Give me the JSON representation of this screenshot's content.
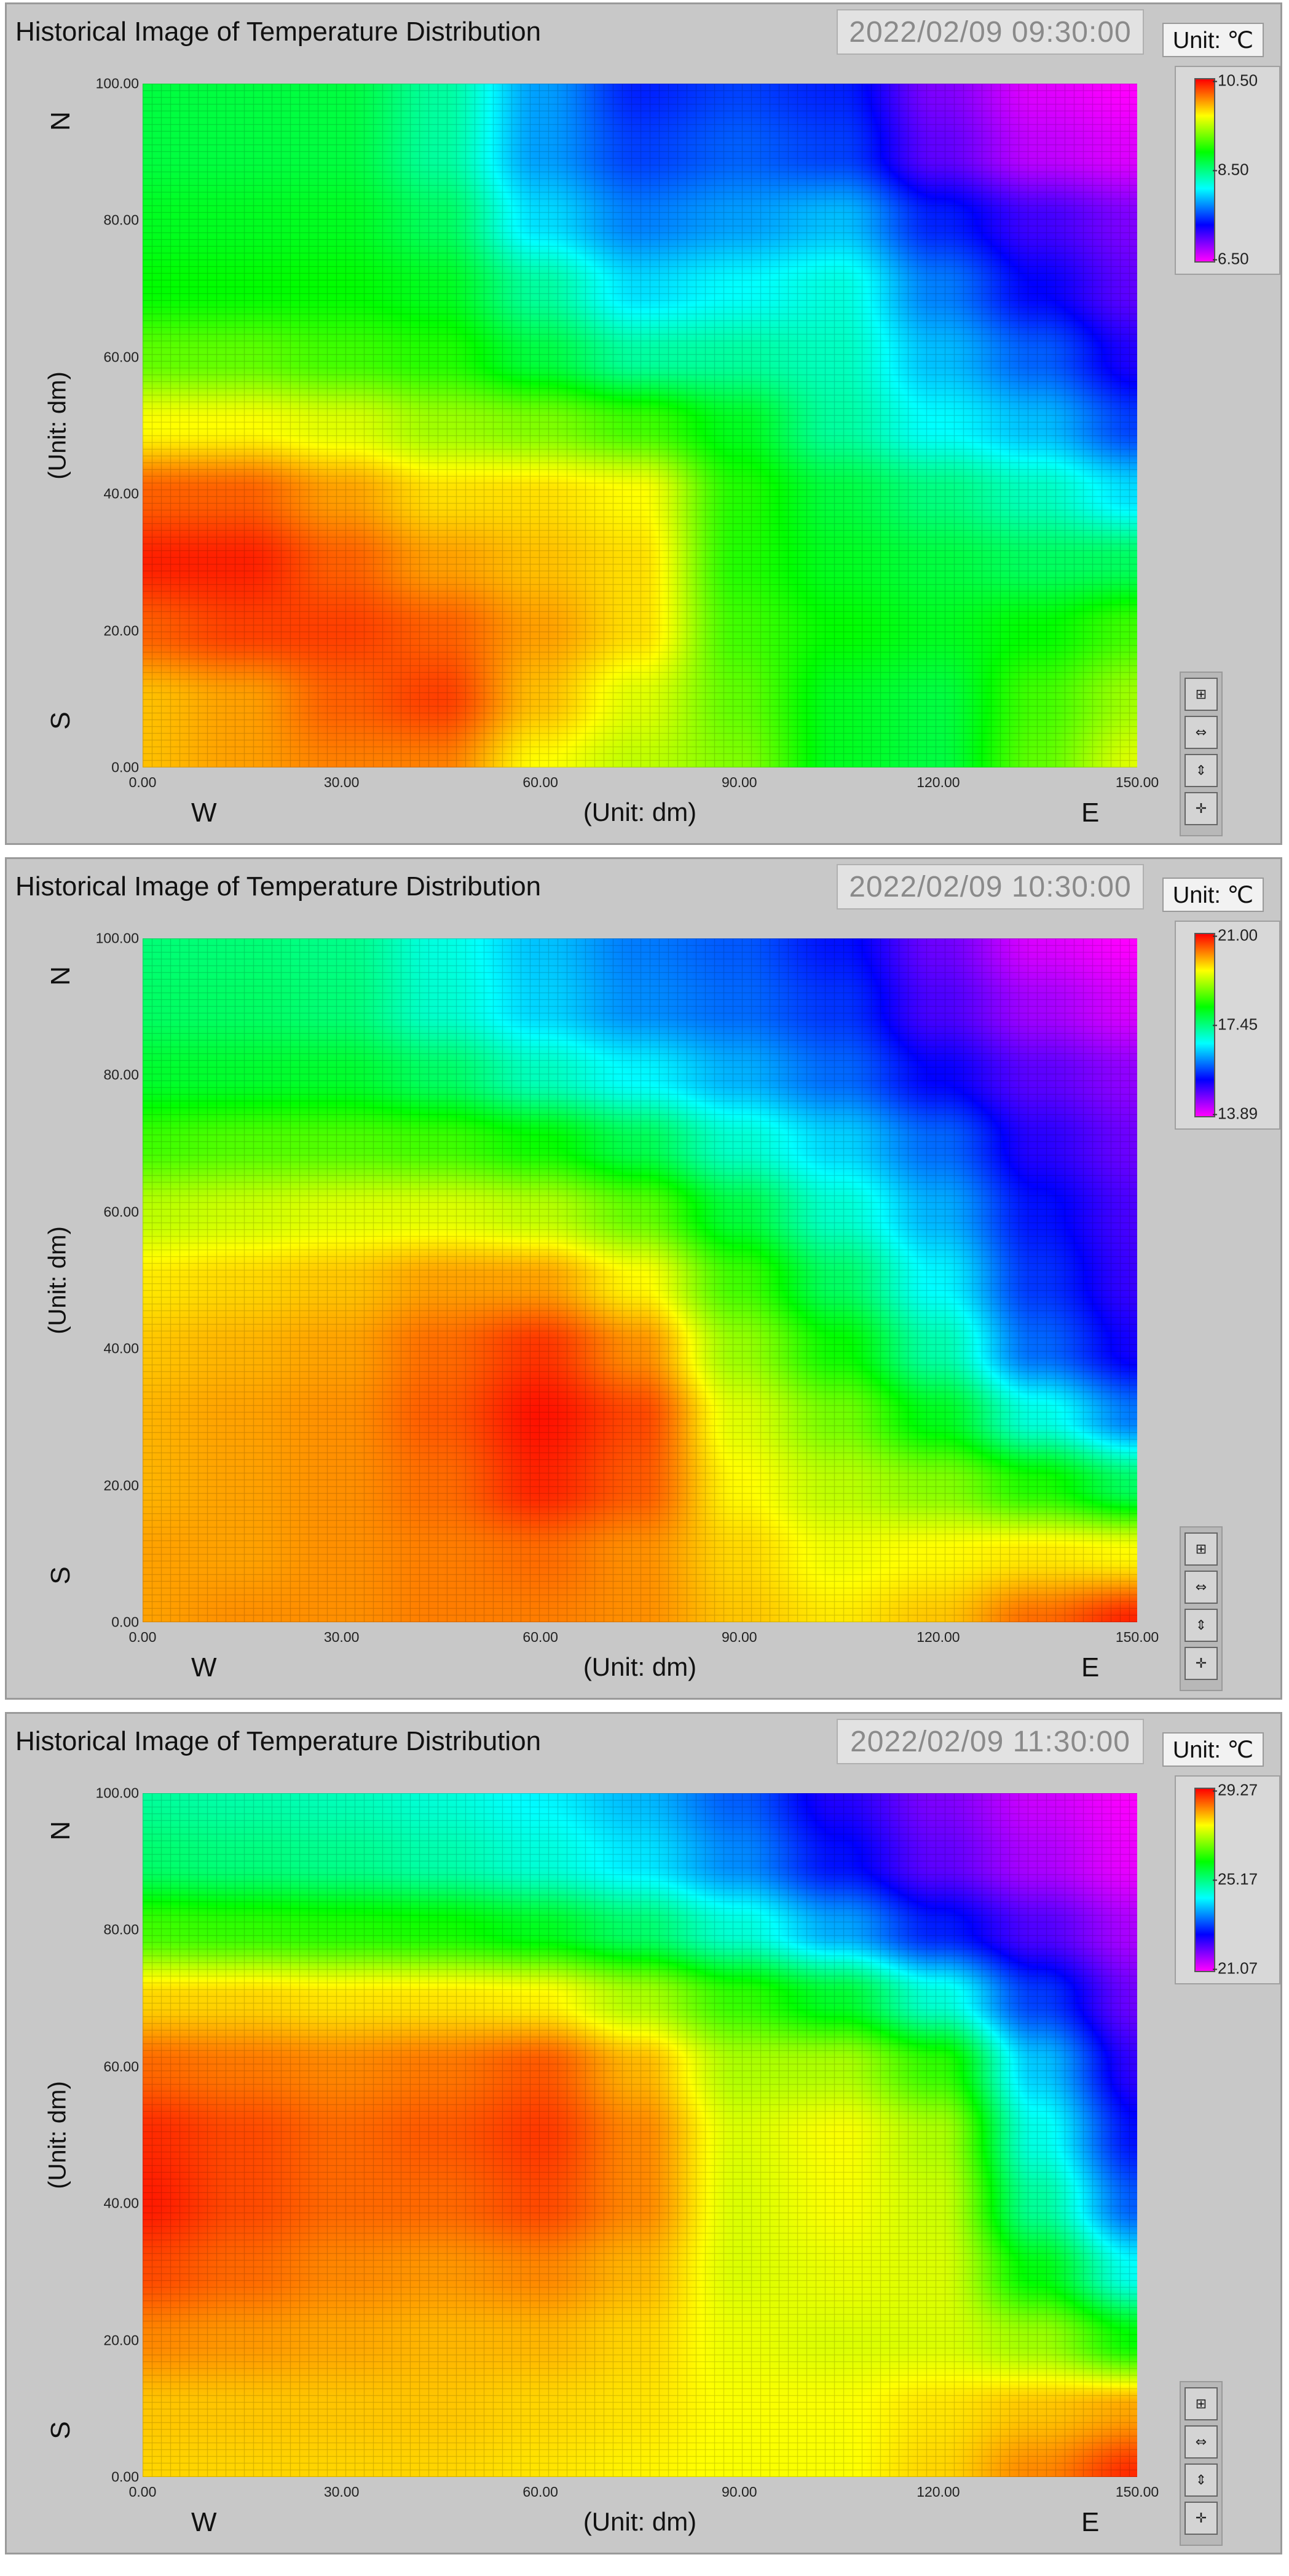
{
  "panels": [
    {
      "title": "Historical Image of Temperature Distribution",
      "timestamp": "2022/02/09 09:30:00",
      "unit": "Unit: ℃",
      "xlabel": "(Unit: dm)",
      "ylabel": "(Unit: dm)",
      "directions": {
        "north": "N",
        "south": "S",
        "west": "W",
        "east": "E"
      },
      "x_ticks": [
        "0.00",
        "30.00",
        "60.00",
        "90.00",
        "120.00",
        "150.00"
      ],
      "y_ticks": [
        "0.00",
        "20.00",
        "40.00",
        "60.00",
        "80.00",
        "100.00"
      ],
      "scale_ticks": [
        "10.50",
        "8.50",
        "6.50"
      ]
    },
    {
      "title": "Historical Image of Temperature Distribution",
      "timestamp": "2022/02/09 10:30:00",
      "unit": "Unit: ℃",
      "xlabel": "(Unit: dm)",
      "ylabel": "(Unit: dm)",
      "directions": {
        "north": "N",
        "south": "S",
        "west": "W",
        "east": "E"
      },
      "x_ticks": [
        "0.00",
        "30.00",
        "60.00",
        "90.00",
        "120.00",
        "150.00"
      ],
      "y_ticks": [
        "0.00",
        "20.00",
        "40.00",
        "60.00",
        "80.00",
        "100.00"
      ],
      "scale_ticks": [
        "21.00",
        "17.45",
        "13.89"
      ]
    },
    {
      "title": "Historical Image of Temperature Distribution",
      "timestamp": "2022/02/09 11:30:00",
      "unit": "Unit: ℃",
      "xlabel": "(Unit: dm)",
      "ylabel": "(Unit: dm)",
      "directions": {
        "north": "N",
        "south": "S",
        "west": "W",
        "east": "E"
      },
      "x_ticks": [
        "0.00",
        "30.00",
        "60.00",
        "90.00",
        "120.00",
        "150.00"
      ],
      "y_ticks": [
        "0.00",
        "20.00",
        "40.00",
        "60.00",
        "80.00",
        "100.00"
      ],
      "scale_ticks": [
        "29.27",
        "25.17",
        "21.07"
      ]
    }
  ],
  "palette_buttons": [
    "zoom-tool-icon",
    "pan-x-icon",
    "pan-y-icon",
    "cursor-cross-icon"
  ],
  "colormap": [
    "#ff00ff",
    "#0000ff",
    "#00ffff",
    "#00ff00",
    "#ffff00",
    "#ff0000"
  ],
  "chart_data": [
    {
      "type": "heatmap",
      "timestamp": "2022/02/09 09:30:00",
      "xlabel": "(Unit: dm)",
      "ylabel": "(Unit: dm)",
      "xlim": [
        0,
        150
      ],
      "ylim": [
        0,
        100
      ],
      "zlim": [
        6.5,
        10.5
      ],
      "colorbar_ticks": [
        10.5,
        8.5,
        6.5
      ],
      "unit": "℃",
      "x": [
        0,
        15,
        30,
        45,
        60,
        75,
        90,
        105,
        120,
        135,
        150
      ],
      "y": [
        0,
        10,
        20,
        30,
        40,
        50,
        60,
        70,
        80,
        90,
        100
      ],
      "z": [
        [
          9.9,
          10.0,
          10.1,
          10.1,
          9.7,
          9.5,
          9.3,
          8.8,
          8.7,
          9.2,
          9.6
        ],
        [
          9.9,
          10.0,
          10.2,
          10.3,
          9.9,
          9.6,
          9.2,
          8.8,
          8.7,
          9.1,
          9.4
        ],
        [
          10.2,
          10.3,
          10.3,
          10.2,
          10.0,
          9.8,
          9.1,
          8.9,
          8.8,
          8.9,
          9.1
        ],
        [
          10.4,
          10.4,
          10.2,
          10.0,
          9.9,
          9.8,
          9.0,
          8.8,
          8.7,
          8.6,
          8.6
        ],
        [
          10.2,
          10.2,
          10.0,
          9.8,
          9.8,
          9.7,
          9.0,
          8.7,
          8.5,
          8.3,
          8.0
        ],
        [
          9.7,
          9.7,
          9.6,
          9.4,
          9.3,
          9.1,
          8.8,
          8.4,
          8.1,
          7.9,
          7.5
        ],
        [
          9.2,
          9.2,
          9.1,
          9.0,
          8.7,
          8.4,
          8.4,
          8.3,
          7.9,
          7.6,
          7.2
        ],
        [
          8.9,
          8.9,
          8.9,
          8.8,
          8.4,
          8.0,
          8.1,
          8.2,
          7.7,
          7.3,
          7.0
        ],
        [
          8.8,
          8.8,
          8.8,
          8.6,
          8.0,
          7.7,
          7.8,
          7.9,
          7.4,
          7.1,
          6.9
        ],
        [
          8.7,
          8.7,
          8.7,
          8.4,
          7.8,
          7.5,
          7.6,
          7.5,
          7.0,
          6.7,
          6.6
        ],
        [
          8.7,
          8.7,
          8.7,
          8.4,
          7.8,
          7.4,
          7.5,
          7.4,
          6.9,
          6.6,
          6.5
        ]
      ]
    },
    {
      "type": "heatmap",
      "timestamp": "2022/02/09 10:30:00",
      "xlabel": "(Unit: dm)",
      "ylabel": "(Unit: dm)",
      "xlim": [
        0,
        150
      ],
      "ylim": [
        0,
        100
      ],
      "zlim": [
        13.89,
        21.0
      ],
      "colorbar_ticks": [
        21.0,
        17.45,
        13.89
      ],
      "unit": "℃",
      "x": [
        0,
        15,
        30,
        45,
        60,
        75,
        90,
        105,
        120,
        135,
        150
      ],
      "y": [
        0,
        10,
        20,
        30,
        40,
        50,
        60,
        70,
        80,
        90,
        100
      ],
      "z": [
        [
          20.1,
          20.2,
          20.2,
          20.3,
          20.3,
          20.2,
          19.9,
          19.7,
          19.9,
          20.4,
          20.8
        ],
        [
          20.1,
          20.1,
          20.2,
          20.3,
          20.4,
          20.2,
          19.8,
          19.5,
          19.6,
          19.7,
          19.6
        ],
        [
          20.0,
          20.1,
          20.2,
          20.4,
          20.8,
          20.5,
          19.6,
          19.2,
          18.9,
          18.3,
          17.6
        ],
        [
          20.0,
          20.1,
          20.2,
          20.5,
          20.9,
          20.6,
          19.4,
          18.8,
          18.0,
          16.9,
          16.0
        ],
        [
          19.9,
          20.0,
          20.1,
          20.4,
          20.7,
          20.2,
          19.0,
          18.2,
          17.2,
          15.9,
          15.2
        ],
        [
          19.7,
          19.8,
          19.9,
          20.1,
          20.1,
          19.6,
          18.5,
          17.6,
          16.7,
          15.6,
          15.0
        ],
        [
          19.2,
          19.3,
          19.4,
          19.4,
          19.2,
          18.7,
          17.8,
          17.0,
          16.3,
          15.4,
          14.9
        ],
        [
          18.5,
          18.6,
          18.6,
          18.5,
          18.2,
          17.7,
          17.0,
          16.5,
          15.9,
          15.1,
          14.7
        ],
        [
          17.9,
          17.9,
          17.9,
          17.6,
          17.1,
          16.7,
          16.3,
          15.9,
          15.3,
          14.8,
          14.5
        ],
        [
          17.6,
          17.6,
          17.5,
          17.0,
          16.5,
          16.1,
          15.9,
          15.6,
          14.9,
          14.4,
          14.1
        ],
        [
          17.5,
          17.5,
          17.4,
          16.9,
          16.4,
          16.0,
          15.8,
          15.4,
          14.7,
          14.1,
          13.9
        ]
      ]
    },
    {
      "type": "heatmap",
      "timestamp": "2022/02/09 11:30:00",
      "xlabel": "(Unit: dm)",
      "ylabel": "(Unit: dm)",
      "xlim": [
        0,
        150
      ],
      "ylim": [
        0,
        100
      ],
      "zlim": [
        21.07,
        29.27
      ],
      "colorbar_ticks": [
        29.27,
        25.17,
        21.07
      ],
      "unit": "℃",
      "x": [
        0,
        15,
        30,
        45,
        60,
        75,
        90,
        105,
        120,
        135,
        150
      ],
      "y": [
        0,
        10,
        20,
        30,
        40,
        50,
        60,
        70,
        80,
        90,
        100
      ],
      "z": [
        [
          27.9,
          27.9,
          27.9,
          27.9,
          27.8,
          27.7,
          27.6,
          27.6,
          27.9,
          28.4,
          29.0
        ],
        [
          28.0,
          28.0,
          28.0,
          28.0,
          27.9,
          27.8,
          27.6,
          27.6,
          27.8,
          28.0,
          28.2
        ],
        [
          28.4,
          28.3,
          28.2,
          28.1,
          28.1,
          27.9,
          27.5,
          27.4,
          27.4,
          27.0,
          26.0
        ],
        [
          28.8,
          28.6,
          28.4,
          28.3,
          28.4,
          28.1,
          27.4,
          27.5,
          27.4,
          25.9,
          24.4
        ],
        [
          29.1,
          28.8,
          28.6,
          28.6,
          28.8,
          28.4,
          27.4,
          27.6,
          27.3,
          25.0,
          23.3
        ],
        [
          29.0,
          28.8,
          28.6,
          28.7,
          28.9,
          28.4,
          27.4,
          27.6,
          27.1,
          24.5,
          22.8
        ],
        [
          28.6,
          28.5,
          28.4,
          28.5,
          28.7,
          28.1,
          27.1,
          27.1,
          26.3,
          24.0,
          22.4
        ],
        [
          27.9,
          27.9,
          27.8,
          27.8,
          27.7,
          27.1,
          26.3,
          25.7,
          24.6,
          23.1,
          22.0
        ],
        [
          26.4,
          26.3,
          26.2,
          26.1,
          25.8,
          25.3,
          24.6,
          23.8,
          22.9,
          22.2,
          21.6
        ],
        [
          25.3,
          25.2,
          25.1,
          24.9,
          24.6,
          24.2,
          23.6,
          22.8,
          22.1,
          21.6,
          21.2
        ],
        [
          25.0,
          24.9,
          24.8,
          24.6,
          24.3,
          23.9,
          23.3,
          22.5,
          21.9,
          21.4,
          21.1
        ]
      ]
    }
  ]
}
